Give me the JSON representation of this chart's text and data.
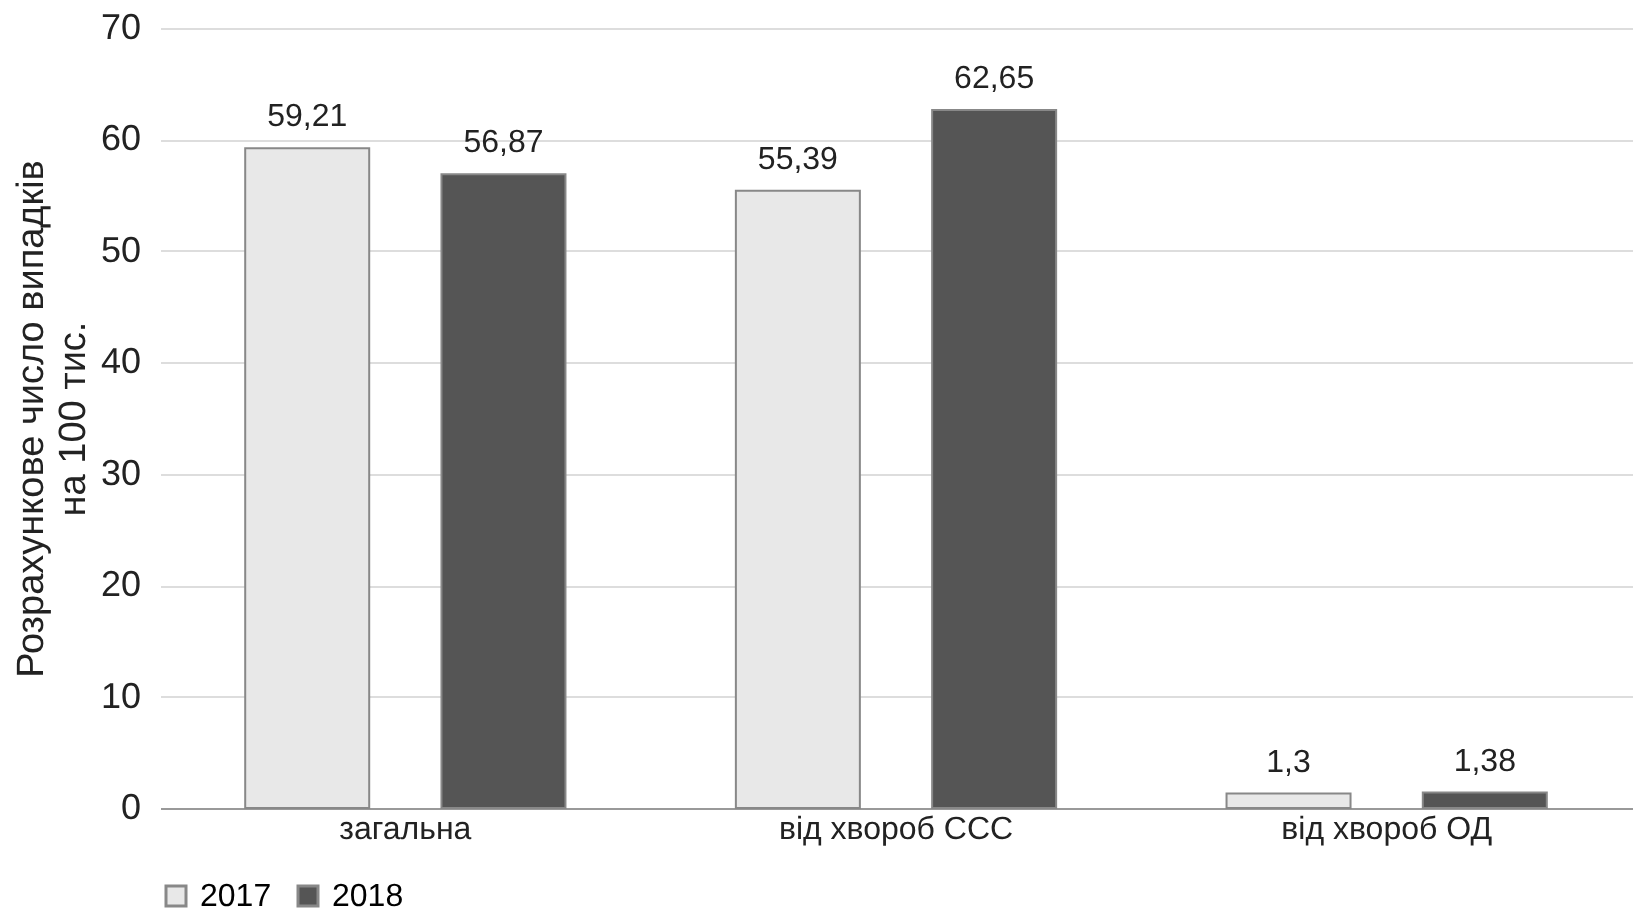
{
  "chart_data": {
    "type": "bar",
    "ylabel": "Розрахункове число випадків\nна 100 тис.",
    "categories": [
      "загальна",
      "від хвороб ССС",
      "від хвороб ОД"
    ],
    "series": [
      {
        "name": "2017",
        "color": "#e8e8e8",
        "values": [
          59.21,
          55.39,
          1.3
        ],
        "value_labels": [
          "59,21",
          "55,39",
          "1,3"
        ]
      },
      {
        "name": "2018",
        "color": "#555555",
        "values": [
          56.87,
          62.65,
          1.38
        ],
        "value_labels": [
          "56,87",
          "62,65",
          "1,38"
        ]
      }
    ],
    "ylim": [
      0,
      70
    ],
    "yticks": [
      0,
      10,
      20,
      30,
      40,
      50,
      60,
      70
    ],
    "grid": "y",
    "legend": "bottom"
  }
}
